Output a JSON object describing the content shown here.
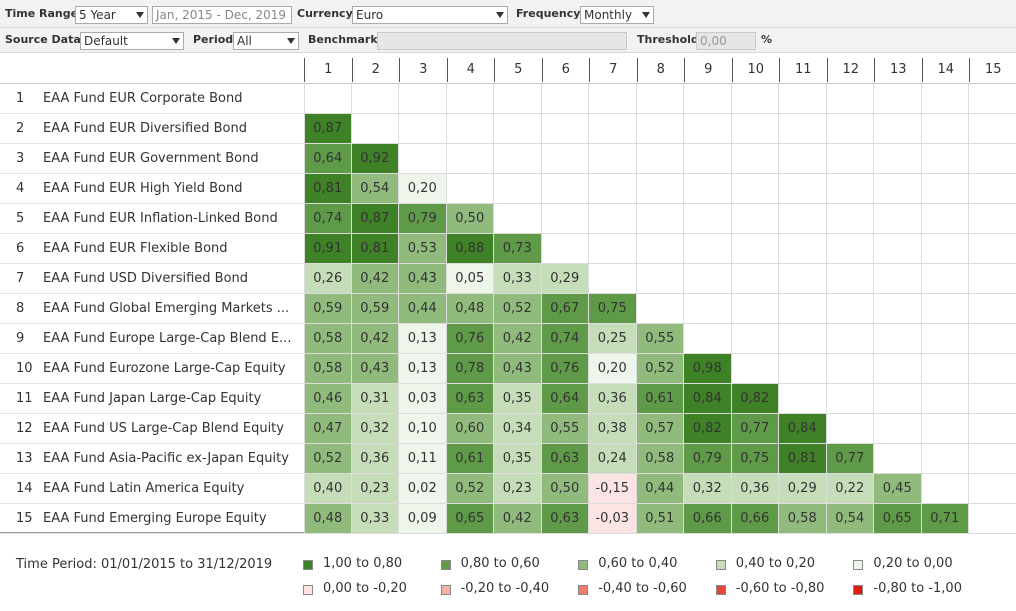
{
  "toolbar": {
    "row1": {
      "time_range_label": "Time Range",
      "time_range_value": "5 Year",
      "date_range": "Jan, 2015 - Dec, 2019",
      "currency_label": "Currency",
      "currency_value": "Euro",
      "frequency_label": "Frequency",
      "frequency_value": "Monthly"
    },
    "row2": {
      "source_label": "Source Data",
      "source_value": "Default",
      "period_label": "Period",
      "period_value": "All",
      "benchmark_label": "Benchmark",
      "threshold_label": "Threshold",
      "threshold_value": "0,00",
      "threshold_unit": "%"
    }
  },
  "matrix": {
    "columns": [
      "1",
      "2",
      "3",
      "4",
      "5",
      "6",
      "7",
      "8",
      "9",
      "10",
      "11",
      "12",
      "13",
      "14",
      "15"
    ],
    "rows": [
      {
        "index": "1",
        "name": "EAA Fund EUR Corporate Bond",
        "values": []
      },
      {
        "index": "2",
        "name": "EAA Fund EUR Diversified Bond",
        "values": [
          "0,87"
        ]
      },
      {
        "index": "3",
        "name": "EAA Fund EUR Government Bond",
        "values": [
          "0,64",
          "0,92"
        ]
      },
      {
        "index": "4",
        "name": "EAA Fund EUR High Yield Bond",
        "values": [
          "0,81",
          "0,54",
          "0,20"
        ]
      },
      {
        "index": "5",
        "name": "EAA Fund EUR Inflation-Linked Bond",
        "values": [
          "0,74",
          "0,87",
          "0,79",
          "0,50"
        ]
      },
      {
        "index": "6",
        "name": "EAA Fund EUR Flexible Bond",
        "values": [
          "0,91",
          "0,81",
          "0,53",
          "0,88",
          "0,73"
        ]
      },
      {
        "index": "7",
        "name": "EAA Fund USD Diversified Bond",
        "values": [
          "0,26",
          "0,42",
          "0,43",
          "0,05",
          "0,33",
          "0,29"
        ]
      },
      {
        "index": "8",
        "name": "EAA Fund Global Emerging Markets ...",
        "values": [
          "0,59",
          "0,59",
          "0,44",
          "0,48",
          "0,52",
          "0,67",
          "0,75"
        ]
      },
      {
        "index": "9",
        "name": "EAA Fund Europe Large-Cap Blend E...",
        "values": [
          "0,58",
          "0,42",
          "0,13",
          "0,76",
          "0,42",
          "0,74",
          "0,25",
          "0,55"
        ]
      },
      {
        "index": "10",
        "name": "EAA Fund Eurozone Large-Cap Equity",
        "values": [
          "0,58",
          "0,43",
          "0,13",
          "0,78",
          "0,43",
          "0,76",
          "0,20",
          "0,52",
          "0,98"
        ]
      },
      {
        "index": "11",
        "name": "EAA Fund Japan Large-Cap Equity",
        "values": [
          "0,46",
          "0,31",
          "0,03",
          "0,63",
          "0,35",
          "0,64",
          "0,36",
          "0,61",
          "0,84",
          "0,82"
        ]
      },
      {
        "index": "12",
        "name": "EAA Fund US Large-Cap Blend Equity",
        "values": [
          "0,47",
          "0,32",
          "0,10",
          "0,60",
          "0,34",
          "0,55",
          "0,38",
          "0,57",
          "0,82",
          "0,77",
          "0,84"
        ]
      },
      {
        "index": "13",
        "name": "EAA Fund Asia-Pacific ex-Japan Equity",
        "values": [
          "0,52",
          "0,36",
          "0,11",
          "0,61",
          "0,35",
          "0,63",
          "0,24",
          "0,58",
          "0,79",
          "0,75",
          "0,81",
          "0,77"
        ]
      },
      {
        "index": "14",
        "name": "EAA Fund Latin America Equity",
        "values": [
          "0,40",
          "0,23",
          "0,02",
          "0,52",
          "0,23",
          "0,50",
          "-0,15",
          "0,44",
          "0,32",
          "0,36",
          "0,29",
          "0,22",
          "0,45"
        ]
      },
      {
        "index": "15",
        "name": "EAA Fund Emerging Europe Equity",
        "values": [
          "0,48",
          "0,33",
          "0,09",
          "0,65",
          "0,42",
          "0,63",
          "-0,03",
          "0,51",
          "0,66",
          "0,66",
          "0,58",
          "0,54",
          "0,65",
          "0,71"
        ]
      }
    ]
  },
  "footer": {
    "time_period": "Time Period: 01/01/2015 to 31/12/2019",
    "legend": [
      {
        "label": "1,00 to 0,80",
        "color": "#3f8126"
      },
      {
        "label": "0,80 to 0,60",
        "color": "#5f9a48"
      },
      {
        "label": "0,60 to 0,40",
        "color": "#90bb7c"
      },
      {
        "label": "0,40 to 0,20",
        "color": "#c5ddb8"
      },
      {
        "label": "0,20 to 0,00",
        "color": "#eef5ea"
      },
      {
        "label": "0,00 to -0,20",
        "color": "#fde4e4"
      },
      {
        "label": "-0,20 to -0,40",
        "color": "#f5b1aa"
      },
      {
        "label": "-0,40 to -0,60",
        "color": "#ee7b70"
      },
      {
        "label": "-0,60 to -0,80",
        "color": "#e6453a"
      },
      {
        "label": "-0,80 to -1,00",
        "color": "#df1d10"
      }
    ]
  }
}
